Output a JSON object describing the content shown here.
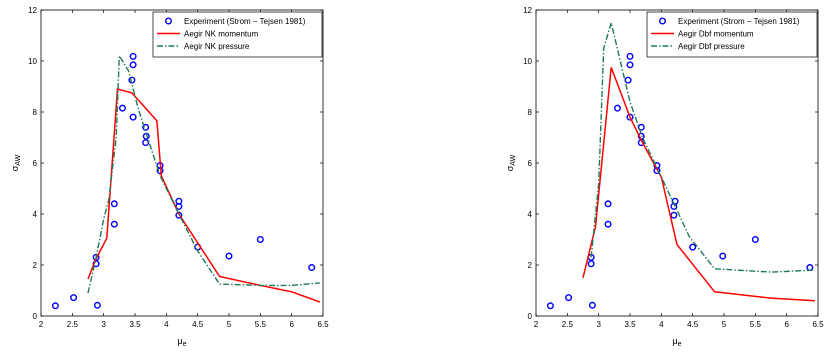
{
  "chart_data": [
    {
      "type": "line",
      "xlabel_main": "μ",
      "xlabel_sub": "e",
      "ylabel_main": "σ",
      "ylabel_sub": "AW",
      "xlim": [
        2,
        6.5
      ],
      "ylim": [
        0,
        12
      ],
      "xticks": [
        2,
        2.5,
        3,
        3.5,
        4,
        4.5,
        5,
        5.5,
        6,
        6.5
      ],
      "yticks": [
        0,
        2,
        4,
        6,
        8,
        10,
        12
      ],
      "legend_position": "top-right",
      "grid": false,
      "series": [
        {
          "name": "Experiment (Strom − Tejsen 1981)",
          "kind": "scatter",
          "color": "#0000ff",
          "points": [
            [
              2.23,
              0.4
            ],
            [
              2.52,
              0.72
            ],
            [
              2.88,
              2.3
            ],
            [
              2.88,
              2.05
            ],
            [
              2.9,
              0.42
            ],
            [
              3.17,
              4.4
            ],
            [
              3.17,
              3.6
            ],
            [
              3.3,
              8.15
            ],
            [
              3.47,
              10.18
            ],
            [
              3.47,
              9.85
            ],
            [
              3.45,
              9.25
            ],
            [
              3.47,
              7.8
            ],
            [
              3.67,
              7.4
            ],
            [
              3.68,
              7.05
            ],
            [
              3.67,
              6.8
            ],
            [
              3.9,
              5.9
            ],
            [
              3.9,
              5.7
            ],
            [
              4.2,
              4.5
            ],
            [
              4.2,
              4.3
            ],
            [
              4.2,
              3.95
            ],
            [
              4.5,
              2.7
            ],
            [
              5.0,
              2.35
            ],
            [
              5.5,
              3.0
            ],
            [
              6.32,
              1.9
            ]
          ]
        },
        {
          "name": "Aegir NK momentum",
          "kind": "line",
          "color": "#ff0000",
          "dash": "solid",
          "points": [
            [
              2.75,
              1.45
            ],
            [
              2.87,
              2.2
            ],
            [
              3.05,
              3.05
            ],
            [
              3.22,
              8.9
            ],
            [
              3.45,
              8.75
            ],
            [
              3.67,
              8.15
            ],
            [
              3.85,
              7.65
            ],
            [
              3.92,
              5.5
            ],
            [
              4.2,
              4.0
            ],
            [
              4.85,
              1.55
            ],
            [
              5.5,
              1.2
            ],
            [
              6.0,
              0.95
            ],
            [
              6.45,
              0.55
            ]
          ]
        },
        {
          "name": "Aegir NK pressure",
          "kind": "line",
          "color": "#1f7a5a",
          "dash": "dashdot",
          "points": [
            [
              2.75,
              0.9
            ],
            [
              2.88,
              2.3
            ],
            [
              3.0,
              3.8
            ],
            [
              3.08,
              4.55
            ],
            [
              3.2,
              7.0
            ],
            [
              3.25,
              10.2
            ],
            [
              3.4,
              9.6
            ],
            [
              3.55,
              8.15
            ],
            [
              3.7,
              7.0
            ],
            [
              3.9,
              5.5
            ],
            [
              4.2,
              4.0
            ],
            [
              4.5,
              2.55
            ],
            [
              4.85,
              1.25
            ],
            [
              5.5,
              1.2
            ],
            [
              6.0,
              1.2
            ],
            [
              6.45,
              1.3
            ]
          ]
        }
      ]
    },
    {
      "type": "line",
      "xlabel_main": "μ",
      "xlabel_sub": "e",
      "ylabel_main": "σ",
      "ylabel_sub": "AW",
      "xlim": [
        2,
        6.5
      ],
      "ylim": [
        0,
        12
      ],
      "xticks": [
        2,
        2.5,
        3,
        3.5,
        4,
        4.5,
        5,
        5.5,
        6,
        6.5
      ],
      "yticks": [
        0,
        2,
        4,
        6,
        8,
        10,
        12
      ],
      "legend_position": "top-right",
      "grid": false,
      "series": [
        {
          "name": "Experiment (Strom − Tejsen 1981)",
          "kind": "scatter",
          "color": "#0000ff",
          "points": [
            [
              2.23,
              0.4
            ],
            [
              2.52,
              0.72
            ],
            [
              2.88,
              2.3
            ],
            [
              2.88,
              2.05
            ],
            [
              2.9,
              0.42
            ],
            [
              3.15,
              4.4
            ],
            [
              3.15,
              3.6
            ],
            [
              3.3,
              8.15
            ],
            [
              3.5,
              10.18
            ],
            [
              3.5,
              9.85
            ],
            [
              3.47,
              9.25
            ],
            [
              3.5,
              7.8
            ],
            [
              3.68,
              7.4
            ],
            [
              3.68,
              7.05
            ],
            [
              3.68,
              6.8
            ],
            [
              3.93,
              5.9
            ],
            [
              3.93,
              5.7
            ],
            [
              4.22,
              4.5
            ],
            [
              4.2,
              4.3
            ],
            [
              4.2,
              3.95
            ],
            [
              4.5,
              2.7
            ],
            [
              4.98,
              2.35
            ],
            [
              5.5,
              3.0
            ],
            [
              6.37,
              1.9
            ]
          ]
        },
        {
          "name": "Aegir Dbf momentum",
          "kind": "line",
          "color": "#ff0000",
          "dash": "solid",
          "points": [
            [
              2.75,
              1.5
            ],
            [
              2.95,
              3.5
            ],
            [
              3.2,
              9.75
            ],
            [
              3.5,
              7.8
            ],
            [
              3.7,
              6.8
            ],
            [
              4.0,
              5.45
            ],
            [
              4.25,
              2.8
            ],
            [
              4.85,
              0.95
            ],
            [
              5.75,
              0.7
            ],
            [
              6.45,
              0.6
            ]
          ]
        },
        {
          "name": "Aegir Dbf pressure",
          "kind": "line",
          "color": "#1f7a5a",
          "dash": "dashdot",
          "points": [
            [
              2.88,
              2.3
            ],
            [
              3.0,
              5.2
            ],
            [
              3.08,
              10.5
            ],
            [
              3.2,
              11.5
            ],
            [
              3.5,
              8.4
            ],
            [
              3.7,
              7.0
            ],
            [
              4.0,
              5.45
            ],
            [
              4.45,
              3.1
            ],
            [
              4.85,
              1.85
            ],
            [
              5.75,
              1.72
            ],
            [
              6.45,
              1.8
            ]
          ]
        }
      ]
    }
  ]
}
